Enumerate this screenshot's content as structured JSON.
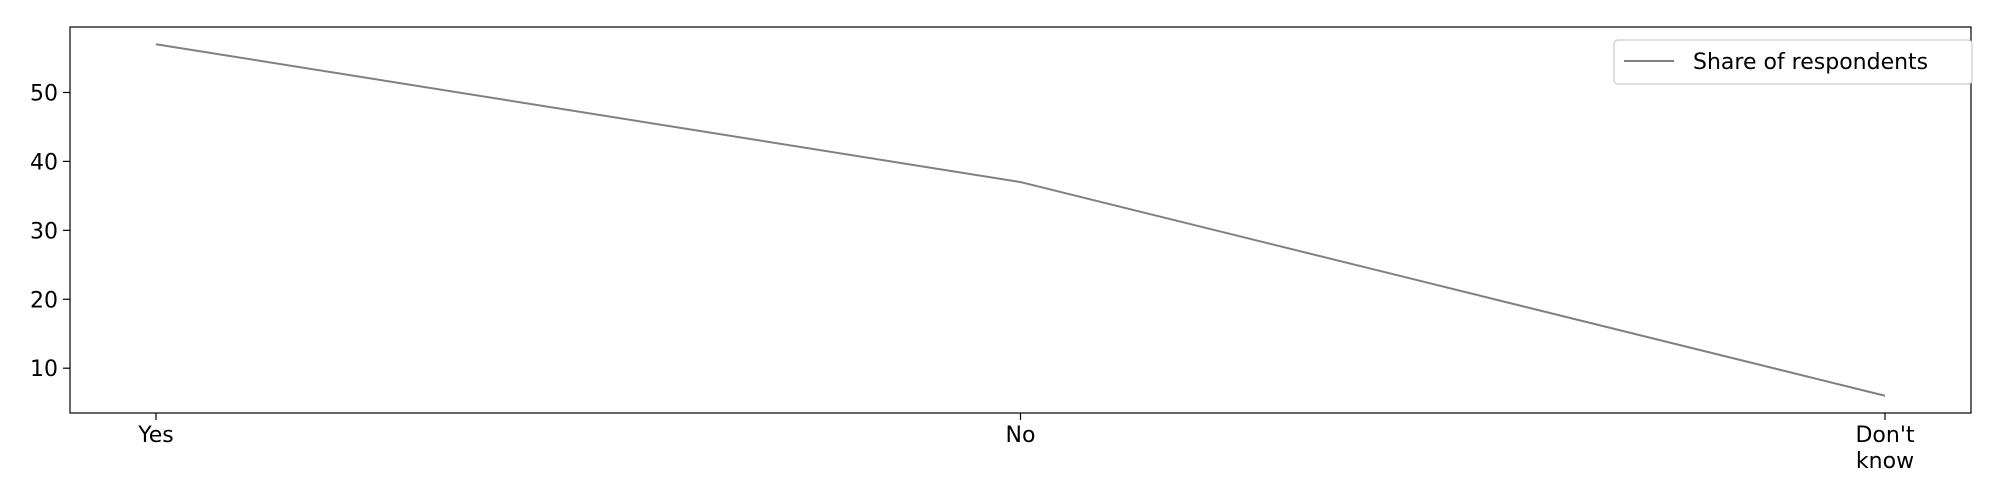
{
  "chart_data": {
    "type": "line",
    "categories": [
      "Yes",
      "No",
      "Don't know"
    ],
    "category_lines": [
      [
        "Yes"
      ],
      [
        "No"
      ],
      [
        "Don't",
        "know"
      ]
    ],
    "series": [
      {
        "name": "Share of respondents",
        "values": [
          57,
          37,
          6
        ],
        "color": "#808080"
      }
    ],
    "ylim": [
      3.5,
      59.5
    ],
    "yticks": [
      10,
      20,
      30,
      40,
      50
    ],
    "xlabel": "",
    "ylabel": "",
    "grid": false,
    "legend_position": "top-right"
  }
}
